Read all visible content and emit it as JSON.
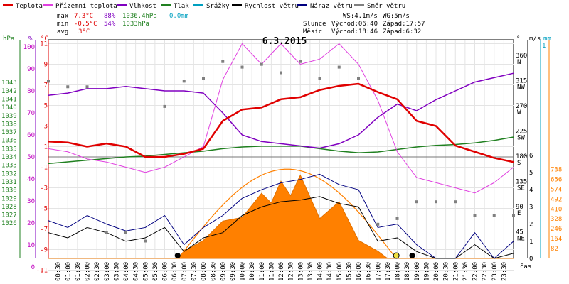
{
  "title": "6.3.2015",
  "legend": [
    {
      "label": "Teplota",
      "color": "#e00000"
    },
    {
      "label": "Přízemní teplota",
      "color": "#e040e0"
    },
    {
      "label": "Vlhkost",
      "color": "#8000c0"
    },
    {
      "label": "Tlak",
      "color": "#208020"
    },
    {
      "label": "Srážky",
      "color": "#00a0c0"
    },
    {
      "label": "Rychlost větru",
      "color": "#000000"
    },
    {
      "label": "Náraz větru",
      "color": "#000080"
    },
    {
      "label": "Směr větru",
      "color": "#808080"
    }
  ],
  "stats": {
    "max_label": "max",
    "max_temp": "7.3°C",
    "max_hum": "88%",
    "max_press": "1036.4hPa",
    "max_rain": "0.0mm",
    "min_label": "min",
    "min_temp": "-0.5°C",
    "min_hum": "54%",
    "min_press": "1033hPa",
    "avg_label": "avg",
    "avg_temp": "3°C"
  },
  "wind_info": {
    "ws": "WS:4.1m/s",
    "wg": "WG:5m/s"
  },
  "sun_info": {
    "label": "Slunce",
    "rise": "Východ:06:40",
    "set": "Západ:17:57"
  },
  "moon_info": {
    "label": "Měsíc",
    "rise": "Východ:18:46",
    "set": "Západ:6:32"
  },
  "axes": {
    "hpa_unit": "hPa",
    "pct_unit": "%",
    "c_unit": "°C",
    "deg_unit": "°",
    "ms_unit": "m/s",
    "mm_unit": "mm",
    "time_unit": "čas",
    "hpa_ticks": [
      "1043",
      "1042",
      "1041",
      "1040",
      "1039",
      "1038",
      "1037",
      "1036",
      "1035",
      "1034",
      "1033",
      "1032",
      "1031",
      "1030",
      "1029",
      "1028",
      "1027",
      "1026"
    ],
    "pct_ticks": [
      "100",
      "90",
      "80",
      "70",
      "60",
      "50",
      "40",
      "30",
      "20",
      "10",
      "0"
    ],
    "c_ticks": [
      "11",
      "9",
      "7",
      "5",
      "3",
      "1",
      "-1",
      "-3",
      "-5",
      "-7",
      "-9",
      "-11"
    ],
    "deg_ticks": [
      {
        "v": "360",
        "d": "N"
      },
      {
        "v": "315",
        "d": "NW"
      },
      {
        "v": "270",
        "d": "W"
      },
      {
        "v": "225",
        "d": "SW"
      },
      {
        "v": "180",
        "d": "S"
      },
      {
        "v": "135",
        "d": "SE"
      },
      {
        "v": "90",
        "d": "E"
      },
      {
        "v": "45",
        "d": "NE"
      }
    ],
    "ms_ticks": [
      "6",
      "5",
      "4",
      "3",
      "2",
      "1",
      "0"
    ],
    "mm_ticks": [
      "1"
    ],
    "solar_ticks": [
      "738",
      "656",
      "574",
      "492",
      "410",
      "328",
      "246",
      "164",
      "82"
    ],
    "x_ticks": [
      "00:30",
      "01:00",
      "01:30",
      "02:00",
      "02:30",
      "03:00",
      "03:30",
      "04:00",
      "04:30",
      "05:00",
      "05:30",
      "06:00",
      "06:30",
      "07:00",
      "07:30",
      "08:00",
      "08:30",
      "09:00",
      "09:30",
      "10:00",
      "10:30",
      "11:00",
      "11:30",
      "12:00",
      "12:30",
      "13:00",
      "13:30",
      "14:00",
      "14:30",
      "15:00",
      "15:30",
      "16:00",
      "16:30",
      "17:00",
      "17:30",
      "18:00",
      "18:30",
      "19:00",
      "19:30",
      "20:00",
      "20:30",
      "21:00",
      "21:30",
      "22:00",
      "22:30",
      "23:00",
      "23:30"
    ]
  },
  "chart_data": {
    "type": "line",
    "title": "6.3.2015",
    "x_unit": "hour",
    "series": [
      {
        "name": "Teplota",
        "unit": "°C",
        "color": "#e00000",
        "x": [
          0,
          1,
          2,
          3,
          4,
          5,
          6,
          7,
          8,
          9,
          10,
          11,
          12,
          13,
          14,
          15,
          16,
          17,
          18,
          19,
          20,
          21,
          22,
          23,
          24
        ],
        "values": [
          1.5,
          1.4,
          1.0,
          1.3,
          1.0,
          0.0,
          0.0,
          0.3,
          0.8,
          3.5,
          4.6,
          4.8,
          5.6,
          5.8,
          6.5,
          6.9,
          7.1,
          6.3,
          5.6,
          3.5,
          3.0,
          1.1,
          0.5,
          -0.1,
          -0.5
        ]
      },
      {
        "name": "Přízemní teplota",
        "unit": "°C",
        "color": "#e040e0",
        "x": [
          0,
          1,
          2,
          3,
          4,
          5,
          6,
          7,
          8,
          9,
          10,
          11,
          12,
          13,
          14,
          15,
          16,
          17,
          18,
          19,
          20,
          21,
          22,
          23,
          24
        ],
        "values": [
          0.8,
          0.5,
          -0.2,
          -0.5,
          -1.0,
          -1.5,
          -1.0,
          0.0,
          1.0,
          7.5,
          11.0,
          9.0,
          11.0,
          9.0,
          9.5,
          11.0,
          9.0,
          5.5,
          0.5,
          -2.0,
          -2.5,
          -3.0,
          -3.5,
          -2.5,
          -1.0
        ]
      },
      {
        "name": "Vlhkost",
        "unit": "%",
        "color": "#8000c0",
        "x": [
          0,
          1,
          2,
          3,
          4,
          5,
          6,
          7,
          8,
          9,
          10,
          11,
          12,
          13,
          14,
          15,
          16,
          17,
          18,
          19,
          20,
          21,
          22,
          23,
          24
        ],
        "values": [
          78,
          79,
          81,
          81,
          82,
          81,
          80,
          80,
          79,
          70,
          60,
          57,
          56,
          55,
          54,
          56,
          60,
          68,
          74,
          71,
          76,
          80,
          84,
          86,
          88
        ]
      },
      {
        "name": "Tlak",
        "unit": "hPa",
        "color": "#208020",
        "x": [
          0,
          1,
          2,
          3,
          4,
          5,
          6,
          7,
          8,
          9,
          10,
          11,
          12,
          13,
          14,
          15,
          16,
          17,
          18,
          19,
          20,
          21,
          22,
          23,
          24
        ],
        "values": [
          1033.2,
          1033.4,
          1033.6,
          1033.8,
          1034.0,
          1034.1,
          1034.3,
          1034.5,
          1034.7,
          1035.0,
          1035.2,
          1035.3,
          1035.3,
          1035.3,
          1035.0,
          1034.7,
          1034.5,
          1034.6,
          1034.9,
          1035.2,
          1035.4,
          1035.5,
          1035.7,
          1036.0,
          1036.4
        ]
      },
      {
        "name": "Rychlost větru",
        "unit": "m/s",
        "color": "#000000",
        "x": [
          0,
          1,
          2,
          3,
          4,
          5,
          6,
          7,
          8,
          9,
          10,
          11,
          12,
          13,
          14,
          15,
          16,
          17,
          18,
          19,
          20,
          21,
          22,
          23,
          24
        ],
        "values": [
          1.5,
          1.2,
          1.8,
          1.5,
          1.0,
          1.2,
          1.8,
          0.4,
          1.2,
          1.5,
          2.5,
          3.0,
          3.3,
          3.4,
          3.6,
          3.2,
          3.0,
          1.0,
          1.2,
          0.4,
          0.0,
          0.0,
          0.8,
          0.0,
          0.3
        ]
      },
      {
        "name": "Náraz větru",
        "unit": "m/s",
        "color": "#000080",
        "x": [
          0,
          1,
          2,
          3,
          4,
          5,
          6,
          7,
          8,
          9,
          10,
          11,
          12,
          13,
          14,
          15,
          16,
          17,
          18,
          19,
          20,
          21,
          22,
          23,
          24
        ],
        "values": [
          2.2,
          1.8,
          2.5,
          2.0,
          1.6,
          1.8,
          2.5,
          0.8,
          1.8,
          2.5,
          3.5,
          4.0,
          4.4,
          4.6,
          4.9,
          4.3,
          4.0,
          1.8,
          2.0,
          0.8,
          0.0,
          0.0,
          1.5,
          0.0,
          1.0
        ]
      },
      {
        "name": "Směr větru",
        "unit": "°",
        "color": "#808080",
        "x": [
          0,
          1,
          2,
          3,
          4,
          5,
          6,
          7,
          8,
          9,
          10,
          11,
          12,
          13,
          14,
          15,
          16,
          17,
          18,
          19,
          20,
          21,
          22,
          23,
          24
        ],
        "values": [
          315,
          305,
          305,
          45,
          45,
          30,
          270,
          315,
          320,
          350,
          340,
          345,
          330,
          350,
          320,
          340,
          320,
          60,
          70,
          100,
          100,
          100,
          75,
          75,
          75
        ]
      },
      {
        "name": "Solar",
        "unit": "W/m²",
        "color": "#ff8000",
        "x": [
          0,
          1,
          2,
          3,
          4,
          5,
          6,
          6.7,
          7,
          8,
          9,
          10,
          11,
          11.5,
          12,
          12.5,
          13,
          14,
          15,
          16,
          17,
          17.5,
          18,
          19,
          20,
          21,
          22,
          23,
          24
        ],
        "values": [
          0,
          0,
          0,
          0,
          0,
          0,
          0,
          0,
          60,
          150,
          310,
          340,
          540,
          460,
          640,
          520,
          690,
          330,
          470,
          150,
          60,
          0,
          0,
          0,
          0,
          0,
          0,
          0,
          0
        ]
      }
    ]
  }
}
